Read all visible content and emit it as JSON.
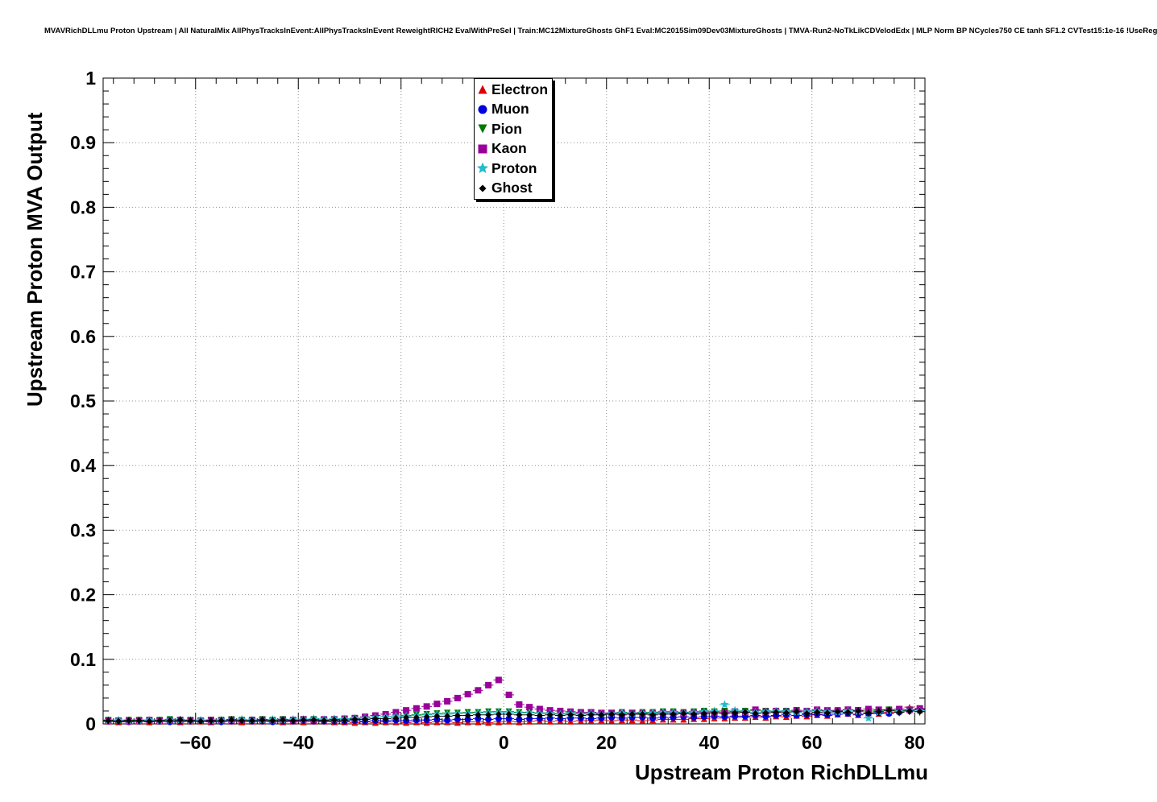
{
  "header": {
    "title": "MVAVRichDLLmu Proton Upstream | All NaturalMix AllPhysTracksInEvent:AllPhysTracksInEvent ReweightRICH2 EvalWithPreSel | Train:MC12MixtureGhosts GhF1 Eval:MC2015Sim09Dev03MixtureGhosts | TMVA-Run2-NoTkLikCDVelodEdx | MLP Norm BP NCycles750 CE tanh SF1.2 CVTest15:1e-16 !UseReg"
  },
  "chart_data": {
    "type": "scatter",
    "title": "",
    "xlabel": "Upstream Proton RichDLLmu",
    "ylabel": "Upstream Proton MVA Output",
    "xlim": [
      -78,
      82
    ],
    "ylim": [
      0,
      1
    ],
    "x_ticks": [
      -60,
      -40,
      -20,
      0,
      20,
      40,
      60,
      80
    ],
    "y_ticks": [
      0,
      0.1,
      0.2,
      0.3,
      0.4,
      0.5,
      0.6,
      0.7,
      0.8,
      0.9,
      1
    ],
    "x_minor_step": 4,
    "y_minor_step": 0.02,
    "grid": true,
    "grid_style": "dotted",
    "legend_position": "top-center",
    "x_bin_half_width": 1,
    "x": [
      -77,
      -75,
      -73,
      -71,
      -69,
      -67,
      -65,
      -63,
      -61,
      -59,
      -57,
      -55,
      -53,
      -51,
      -49,
      -47,
      -45,
      -43,
      -41,
      -39,
      -37,
      -35,
      -33,
      -31,
      -29,
      -27,
      -25,
      -23,
      -21,
      -19,
      -17,
      -15,
      -13,
      -11,
      -9,
      -7,
      -5,
      -3,
      -1,
      1,
      3,
      5,
      7,
      9,
      11,
      13,
      15,
      17,
      19,
      21,
      23,
      25,
      27,
      29,
      31,
      33,
      35,
      37,
      39,
      41,
      43,
      45,
      47,
      49,
      51,
      53,
      55,
      57,
      59,
      61,
      63,
      65,
      67,
      69,
      71,
      73,
      75,
      77,
      79,
      81
    ],
    "series": [
      {
        "name": "Electron",
        "color": "#dd0000",
        "marker": "triangle-up",
        "err": 0.0025,
        "values": [
          0.004,
          0.003,
          0.005,
          0.004,
          0.003,
          0.004,
          0.005,
          0.003,
          0.004,
          0.004,
          0.003,
          0.005,
          0.004,
          0.003,
          0.004,
          0.004,
          0.005,
          0.003,
          0.004,
          0.003,
          0.004,
          0.004,
          0.003,
          0.003,
          0.002,
          0.003,
          0.002,
          0.003,
          0.003,
          0.002,
          0.003,
          0.002,
          0.003,
          0.003,
          0.002,
          0.003,
          0.003,
          0.002,
          0.003,
          0.004,
          0.003,
          0.004,
          0.005,
          0.004,
          0.005,
          0.004,
          0.005,
          0.005,
          0.006,
          0.005,
          0.006,
          0.006,
          0.005,
          0.006,
          0.007,
          0.007,
          0.007,
          0.008,
          0.008,
          0.009,
          0.009,
          0.01,
          0.01,
          0.011,
          0.01,
          0.012,
          0.011,
          0.013,
          0.012,
          0.014,
          0.013,
          0.015,
          0.016,
          0.014,
          0.017,
          0.016,
          0.018,
          0.02,
          0.026,
          0.022
        ]
      },
      {
        "name": "Muon",
        "color": "#0000dd",
        "marker": "circle",
        "err": 0.0025,
        "values": [
          0.004,
          0.004,
          0.003,
          0.004,
          0.005,
          0.004,
          0.003,
          0.004,
          0.004,
          0.005,
          0.004,
          0.003,
          0.004,
          0.005,
          0.004,
          0.004,
          0.003,
          0.004,
          0.004,
          0.005,
          0.004,
          0.004,
          0.004,
          0.004,
          0.005,
          0.004,
          0.005,
          0.005,
          0.006,
          0.005,
          0.006,
          0.006,
          0.007,
          0.006,
          0.007,
          0.007,
          0.008,
          0.007,
          0.008,
          0.008,
          0.007,
          0.008,
          0.008,
          0.009,
          0.008,
          0.009,
          0.009,
          0.008,
          0.009,
          0.01,
          0.009,
          0.01,
          0.01,
          0.009,
          0.01,
          0.01,
          0.011,
          0.01,
          0.011,
          0.012,
          0.011,
          0.012,
          0.012,
          0.013,
          0.012,
          0.013,
          0.014,
          0.013,
          0.014,
          0.015,
          0.014,
          0.015,
          0.016,
          0.015,
          0.016,
          0.017,
          0.016,
          0.018,
          0.02,
          0.022
        ]
      },
      {
        "name": "Pion",
        "color": "#007700",
        "marker": "triangle-down",
        "err": 0.003,
        "values": [
          0.006,
          0.005,
          0.006,
          0.006,
          0.005,
          0.006,
          0.007,
          0.006,
          0.006,
          0.005,
          0.006,
          0.006,
          0.007,
          0.006,
          0.006,
          0.007,
          0.006,
          0.007,
          0.006,
          0.007,
          0.007,
          0.006,
          0.007,
          0.008,
          0.008,
          0.009,
          0.01,
          0.011,
          0.012,
          0.013,
          0.014,
          0.015,
          0.016,
          0.017,
          0.017,
          0.018,
          0.018,
          0.019,
          0.019,
          0.019,
          0.018,
          0.018,
          0.017,
          0.017,
          0.016,
          0.017,
          0.016,
          0.017,
          0.016,
          0.017,
          0.018,
          0.017,
          0.018,
          0.018,
          0.019,
          0.019,
          0.018,
          0.019,
          0.02,
          0.019,
          0.02,
          0.019,
          0.02,
          0.021,
          0.02,
          0.019,
          0.02,
          0.021,
          0.02,
          0.021,
          0.02,
          0.021,
          0.022,
          0.021,
          0.02,
          0.021,
          0.022,
          0.021,
          0.022,
          0.023
        ]
      },
      {
        "name": "Kaon",
        "color": "#990099",
        "marker": "square",
        "err": 0.004,
        "values": [
          0.005,
          0.005,
          0.004,
          0.005,
          0.006,
          0.005,
          0.005,
          0.006,
          0.005,
          0.005,
          0.006,
          0.005,
          0.006,
          0.005,
          0.006,
          0.006,
          0.005,
          0.006,
          0.006,
          0.007,
          0.006,
          0.007,
          0.007,
          0.008,
          0.009,
          0.011,
          0.013,
          0.015,
          0.018,
          0.021,
          0.024,
          0.027,
          0.031,
          0.035,
          0.04,
          0.046,
          0.052,
          0.06,
          0.068,
          0.045,
          0.03,
          0.026,
          0.023,
          0.021,
          0.02,
          0.019,
          0.018,
          0.018,
          0.017,
          0.017,
          0.016,
          0.017,
          0.016,
          0.016,
          0.017,
          0.017,
          0.016,
          0.017,
          0.018,
          0.017,
          0.018,
          0.019,
          0.018,
          0.022,
          0.019,
          0.02,
          0.019,
          0.021,
          0.02,
          0.022,
          0.021,
          0.02,
          0.022,
          0.021,
          0.023,
          0.022,
          0.021,
          0.023,
          0.022,
          0.024
        ]
      },
      {
        "name": "Proton",
        "color": "#22bccc",
        "marker": "star",
        "err": 0.004,
        "values": [
          0.005,
          0.006,
          0.005,
          0.005,
          0.006,
          0.005,
          0.006,
          0.006,
          0.005,
          0.006,
          0.005,
          0.006,
          0.006,
          0.007,
          0.006,
          0.006,
          0.007,
          0.006,
          0.007,
          0.007,
          0.008,
          0.007,
          0.008,
          0.008,
          0.009,
          0.009,
          0.01,
          0.011,
          0.012,
          0.012,
          0.013,
          0.014,
          0.015,
          0.015,
          0.016,
          0.016,
          0.017,
          0.017,
          0.018,
          0.018,
          0.017,
          0.017,
          0.016,
          0.016,
          0.015,
          0.016,
          0.015,
          0.016,
          0.015,
          0.016,
          0.017,
          0.016,
          0.017,
          0.017,
          0.018,
          0.018,
          0.017,
          0.018,
          0.019,
          0.02,
          0.03,
          0.021,
          0.019,
          0.018,
          0.019,
          0.02,
          0.019,
          0.018,
          0.019,
          0.02,
          0.019,
          0.018,
          0.02,
          0.019,
          0.009,
          0.018,
          0.02,
          0.019,
          0.021,
          0.02
        ]
      },
      {
        "name": "Ghost",
        "color": "#000000",
        "marker": "diamond",
        "err": 0.006,
        "values": [
          0.005,
          0.004,
          0.005,
          0.005,
          0.004,
          0.005,
          0.005,
          0.006,
          0.005,
          0.004,
          0.005,
          0.005,
          0.006,
          0.005,
          0.005,
          0.006,
          0.005,
          0.006,
          0.005,
          0.006,
          0.006,
          0.005,
          0.006,
          0.006,
          0.007,
          0.007,
          0.008,
          0.008,
          0.009,
          0.01,
          0.01,
          0.011,
          0.012,
          0.012,
          0.013,
          0.013,
          0.014,
          0.014,
          0.015,
          0.015,
          0.014,
          0.014,
          0.013,
          0.014,
          0.013,
          0.014,
          0.013,
          0.014,
          0.014,
          0.015,
          0.014,
          0.015,
          0.015,
          0.014,
          0.015,
          0.015,
          0.016,
          0.015,
          0.016,
          0.017,
          0.016,
          0.017,
          0.018,
          0.016,
          0.017,
          0.018,
          0.017,
          0.019,
          0.016,
          0.018,
          0.017,
          0.019,
          0.018,
          0.02,
          0.017,
          0.019,
          0.021,
          0.018,
          0.02,
          0.019
        ]
      }
    ]
  }
}
